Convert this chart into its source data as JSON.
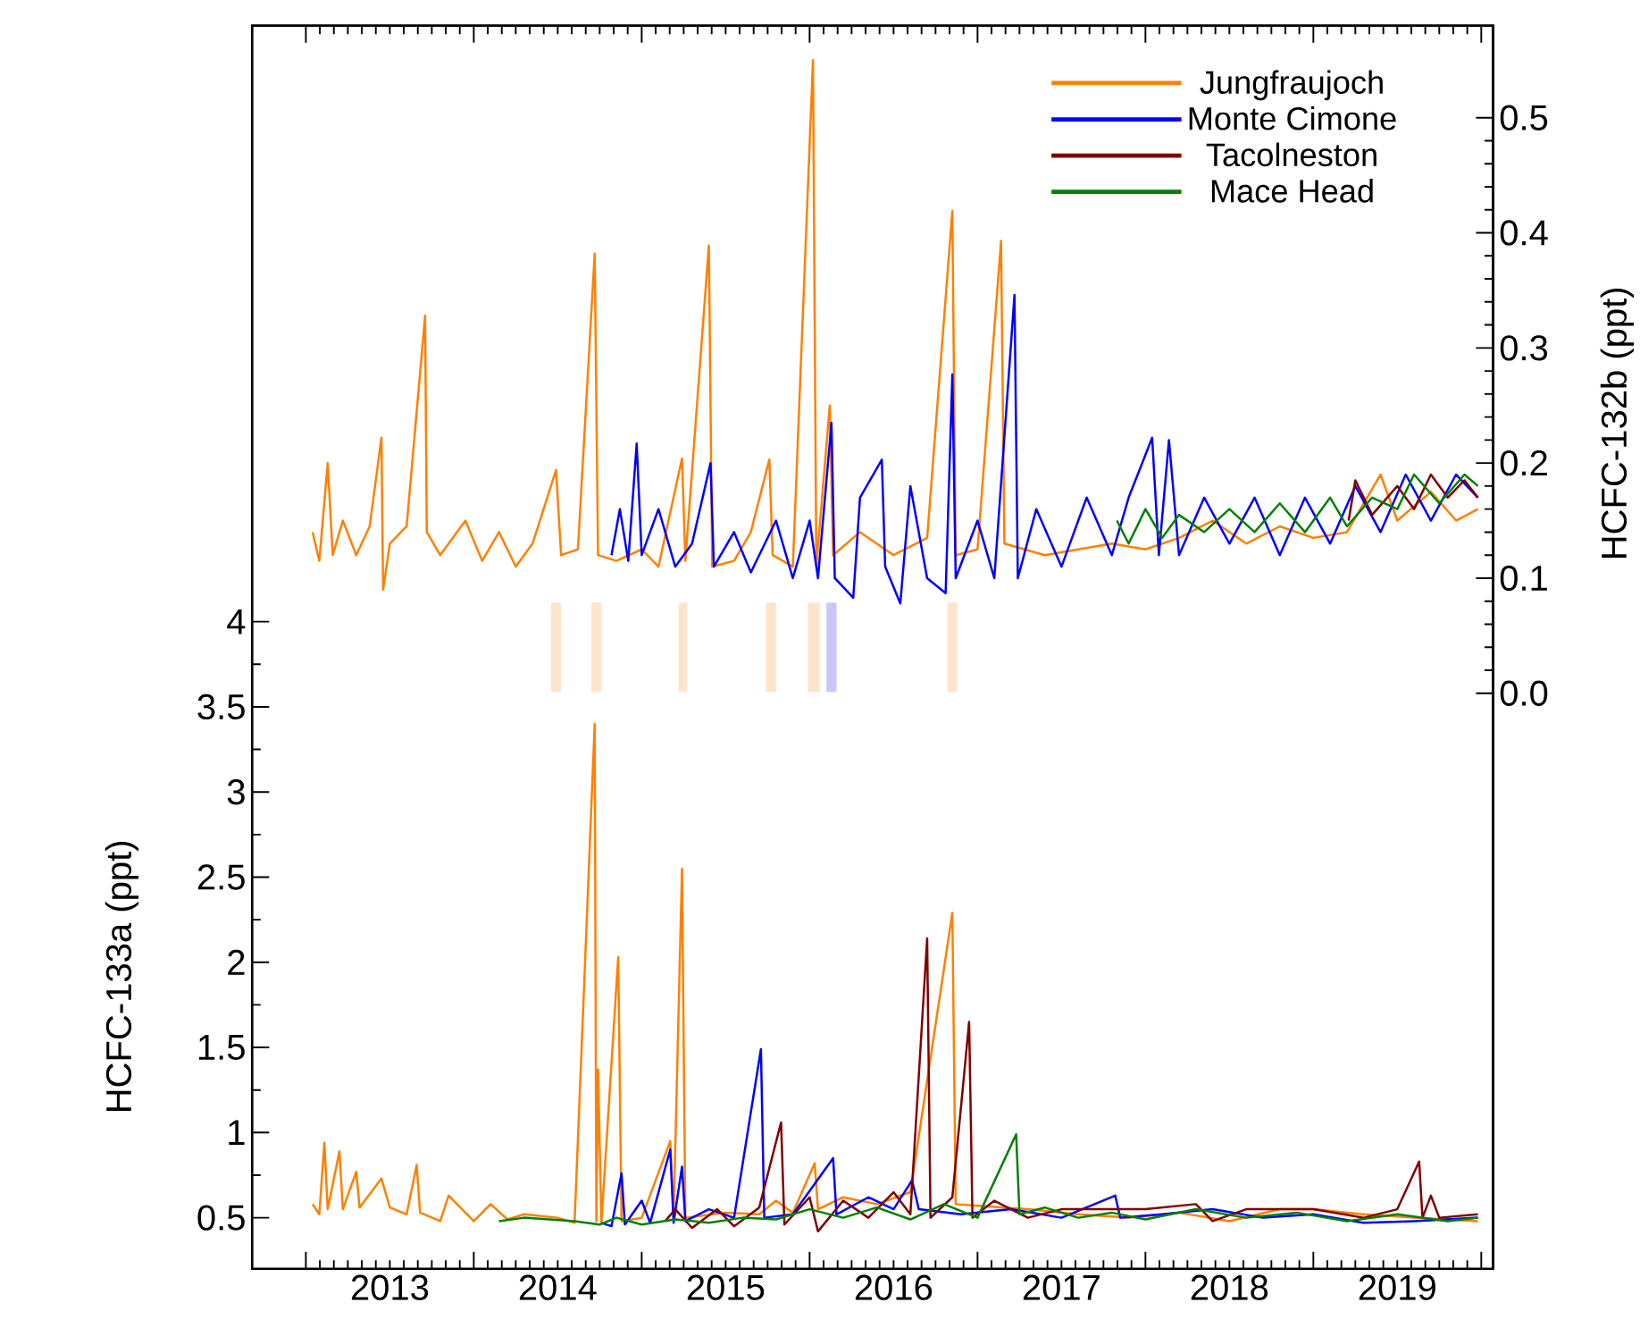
{
  "chart_data": {
    "type": "line",
    "ylabel": "HCFC-133a (ppt)",
    "y2label": "HCFC-132b (ppt)",
    "legend": "top right",
    "xlim": [
      2012.68,
      2020.07
    ],
    "ylim": [
      0.2,
      7.5
    ],
    "y2lim": [
      -0.5,
      0.58
    ],
    "xticks": [
      {
        "value": 2013,
        "label": null
      },
      {
        "value": 2014,
        "label": null
      },
      {
        "value": 2015,
        "label": null
      },
      {
        "value": 2016,
        "label": null
      },
      {
        "value": 2017,
        "label": null
      },
      {
        "value": 2018,
        "label": null
      },
      {
        "value": 2019,
        "label": null
      },
      {
        "value": 2020,
        "label": null
      },
      {
        "value": 2013.5,
        "label": "2013"
      },
      {
        "value": 2014.5,
        "label": "2014"
      },
      {
        "value": 2015.5,
        "label": "2015"
      },
      {
        "value": 2016.5,
        "label": "2016"
      },
      {
        "value": 2017.5,
        "label": "2017"
      },
      {
        "value": 2018.5,
        "label": "2018"
      },
      {
        "value": 2019.5,
        "label": "2019"
      }
    ],
    "yticks": [
      0.5,
      1,
      1.5,
      2,
      2.5,
      3,
      3.5,
      4
    ],
    "y2ticks": [
      {
        "value": 0,
        "label": "0.0"
      },
      {
        "value": 0.1,
        "label": "0.1"
      },
      {
        "value": 0.2,
        "label": "0.2"
      },
      {
        "value": 0.3,
        "label": "0.3"
      },
      {
        "value": 0.4,
        "label": "0.4"
      },
      {
        "value": 0.5,
        "label": "0.5"
      }
    ],
    "bands": [
      {
        "axis": "x",
        "from": 2014.46,
        "to": 2014.52,
        "color": "#ffe4cc"
      },
      {
        "axis": "x",
        "from": 2014.7,
        "to": 2014.76,
        "color": "#ffe4cc"
      },
      {
        "axis": "x",
        "from": 2015.22,
        "to": 2015.27,
        "color": "#ffe4cc"
      },
      {
        "axis": "x",
        "from": 2015.74,
        "to": 2015.8,
        "color": "#ffe4cc"
      },
      {
        "axis": "x",
        "from": 2015.99,
        "to": 2016.06,
        "color": "#ffe4cc"
      },
      {
        "axis": "x",
        "from": 2016.1,
        "to": 2016.16,
        "color": "#c8c8ff"
      },
      {
        "axis": "x",
        "from": 2016.82,
        "to": 2016.88,
        "color": "#ffe4cc"
      }
    ],
    "series": [
      {
        "name": "Jungfraujoch",
        "color": "#ff8000",
        "axis": "y2",
        "x": [
          2013.04,
          2013.08,
          2013.13,
          2013.16,
          2013.22,
          2013.3,
          2013.38,
          2013.45,
          2013.46,
          2013.5,
          2013.6,
          2013.71,
          2013.72,
          2013.8,
          2013.95,
          2014.05,
          2014.15,
          2014.25,
          2014.35,
          2014.49,
          2014.52,
          2014.62,
          2014.72,
          2014.74,
          2014.85,
          2015.0,
          2015.1,
          2015.24,
          2015.26,
          2015.4,
          2015.42,
          2015.55,
          2015.65,
          2015.76,
          2015.78,
          2015.9,
          2016.02,
          2016.04,
          2016.12,
          2016.14,
          2016.3,
          2016.5,
          2016.7,
          2016.85,
          2016.87,
          2017.0,
          2017.14,
          2017.16,
          2017.4,
          2017.6,
          2017.8,
          2018.0,
          2018.2,
          2018.4,
          2018.6,
          2018.8,
          2019.0,
          2019.2,
          2019.4,
          2019.5,
          2019.7,
          2019.85,
          2019.98
        ],
        "values": [
          0.14,
          0.115,
          0.2,
          0.12,
          0.15,
          0.12,
          0.145,
          0.222,
          0.09,
          0.13,
          0.145,
          0.328,
          0.14,
          0.12,
          0.15,
          0.115,
          0.14,
          0.11,
          0.13,
          0.194,
          0.12,
          0.125,
          0.382,
          0.12,
          0.115,
          0.125,
          0.11,
          0.204,
          0.115,
          0.389,
          0.11,
          0.115,
          0.14,
          0.203,
          0.12,
          0.11,
          0.55,
          0.11,
          0.25,
          0.12,
          0.14,
          0.12,
          0.135,
          0.419,
          0.12,
          0.125,
          0.393,
          0.13,
          0.12,
          0.125,
          0.13,
          0.125,
          0.135,
          0.15,
          0.13,
          0.145,
          0.135,
          0.14,
          0.19,
          0.15,
          0.175,
          0.15,
          0.16
        ]
      },
      {
        "name": "Monte Cimone",
        "color": "#0000ff",
        "axis": "y2",
        "x": [
          2014.82,
          2014.87,
          2014.92,
          2014.97,
          2015.0,
          2015.1,
          2015.2,
          2015.3,
          2015.41,
          2015.43,
          2015.55,
          2015.65,
          2015.8,
          2015.9,
          2016.0,
          2016.05,
          2016.13,
          2016.15,
          2016.26,
          2016.3,
          2016.43,
          2016.45,
          2016.54,
          2016.6,
          2016.7,
          2016.81,
          2016.85,
          2016.87,
          2017.0,
          2017.1,
          2017.22,
          2017.24,
          2017.35,
          2017.5,
          2017.65,
          2017.8,
          2017.9,
          2018.04,
          2018.08,
          2018.14,
          2018.2,
          2018.35,
          2018.5,
          2018.65,
          2018.8,
          2018.95,
          2019.1,
          2019.25,
          2019.4,
          2019.55,
          2019.7,
          2019.85,
          2019.98
        ],
        "values": [
          0.12,
          0.16,
          0.115,
          0.217,
          0.12,
          0.16,
          0.11,
          0.13,
          0.2,
          0.11,
          0.14,
          0.105,
          0.15,
          0.1,
          0.15,
          0.1,
          0.235,
          0.1,
          0.083,
          0.17,
          0.203,
          0.11,
          0.078,
          0.18,
          0.1,
          0.087,
          0.277,
          0.1,
          0.15,
          0.1,
          0.346,
          0.1,
          0.16,
          0.11,
          0.17,
          0.12,
          0.17,
          0.222,
          0.12,
          0.22,
          0.12,
          0.17,
          0.13,
          0.17,
          0.12,
          0.17,
          0.13,
          0.18,
          0.14,
          0.19,
          0.15,
          0.19,
          0.17
        ]
      },
      {
        "name": "Tacolneston",
        "color": "#800000",
        "axis": "y2",
        "x": [
          2019.21,
          2019.25,
          2019.35,
          2019.5,
          2019.6,
          2019.7,
          2019.8,
          2019.9,
          2019.98
        ],
        "values": [
          0.15,
          0.185,
          0.155,
          0.18,
          0.16,
          0.19,
          0.17,
          0.185,
          0.17
        ]
      },
      {
        "name": "Mace Head",
        "color": "#008000",
        "axis": "y2",
        "x": [
          2017.83,
          2017.9,
          2018.0,
          2018.1,
          2018.2,
          2018.35,
          2018.5,
          2018.65,
          2018.8,
          2018.95,
          2019.1,
          2019.2,
          2019.35,
          2019.5,
          2019.6,
          2019.75,
          2019.9,
          2019.98
        ],
        "values": [
          0.15,
          0.13,
          0.16,
          0.135,
          0.155,
          0.14,
          0.16,
          0.14,
          0.165,
          0.14,
          0.17,
          0.145,
          0.17,
          0.16,
          0.19,
          0.165,
          0.19,
          0.18
        ]
      },
      {
        "color": "#ff8000",
        "x": [
          2013.04,
          2013.08,
          2013.11,
          2013.13,
          2013.2,
          2013.22,
          2013.3,
          2013.32,
          2013.45,
          2013.5,
          2013.6,
          2013.66,
          2013.68,
          2013.8,
          2013.85,
          2014.0,
          2014.1,
          2014.2,
          2014.3,
          2014.5,
          2014.6,
          2014.72,
          2014.73,
          2014.74,
          2014.76,
          2014.86,
          2014.88,
          2015.0,
          2015.17,
          2015.19,
          2015.24,
          2015.26,
          2015.5,
          2015.7,
          2015.8,
          2015.9,
          2016.03,
          2016.05,
          2016.2,
          2016.4,
          2016.6,
          2016.85,
          2016.87,
          2017.0,
          2017.3,
          2017.6,
          2017.9,
          2018.2,
          2018.5,
          2018.8,
          2019.0,
          2019.3,
          2019.6,
          2019.98
        ],
        "values": [
          0.58,
          0.52,
          0.94,
          0.55,
          0.89,
          0.55,
          0.77,
          0.56,
          0.73,
          0.56,
          0.52,
          0.81,
          0.53,
          0.48,
          0.63,
          0.48,
          0.58,
          0.49,
          0.52,
          0.5,
          0.47,
          3.4,
          0.48,
          1.37,
          0.47,
          2.03,
          0.48,
          0.5,
          0.95,
          0.5,
          2.55,
          0.5,
          0.53,
          0.52,
          0.6,
          0.53,
          0.82,
          0.55,
          0.62,
          0.58,
          0.65,
          2.29,
          0.58,
          0.57,
          0.55,
          0.52,
          0.5,
          0.53,
          0.48,
          0.55,
          0.55,
          0.52,
          0.5,
          0.48
        ]
      },
      {
        "color": "#0000ff",
        "x": [
          2014.76,
          2014.82,
          2014.88,
          2014.9,
          2015.0,
          2015.05,
          2015.17,
          2015.19,
          2015.24,
          2015.26,
          2015.4,
          2015.55,
          2015.71,
          2015.73,
          2015.9,
          2016.14,
          2016.16,
          2016.35,
          2016.5,
          2016.61,
          2016.65,
          2016.9,
          2017.2,
          2017.5,
          2017.82,
          2017.85,
          2018.1,
          2018.4,
          2018.7,
          2019.0,
          2019.3,
          2019.6,
          2019.98
        ],
        "values": [
          0.47,
          0.45,
          0.76,
          0.46,
          0.6,
          0.47,
          0.9,
          0.47,
          0.8,
          0.48,
          0.55,
          0.5,
          1.49,
          0.5,
          0.52,
          0.85,
          0.52,
          0.62,
          0.55,
          0.72,
          0.55,
          0.52,
          0.55,
          0.5,
          0.63,
          0.5,
          0.52,
          0.55,
          0.5,
          0.52,
          0.47,
          0.48,
          0.5
        ]
      },
      {
        "color": "#800000",
        "x": [
          2015.14,
          2015.2,
          2015.3,
          2015.45,
          2015.55,
          2015.7,
          2015.83,
          2015.85,
          2016.0,
          2016.05,
          2016.2,
          2016.35,
          2016.5,
          2016.6,
          2016.7,
          2016.72,
          2016.85,
          2016.95,
          2016.97,
          2017.1,
          2017.3,
          2017.5,
          2018.0,
          2018.3,
          2018.4,
          2018.6,
          2019.0,
          2019.3,
          2019.5,
          2019.63,
          2019.65,
          2019.7,
          2019.75,
          2019.98
        ],
        "values": [
          0.48,
          0.55,
          0.44,
          0.55,
          0.45,
          0.56,
          1.06,
          0.46,
          0.62,
          0.42,
          0.6,
          0.5,
          0.65,
          0.52,
          2.14,
          0.5,
          0.62,
          1.65,
          0.5,
          0.6,
          0.5,
          0.55,
          0.55,
          0.58,
          0.48,
          0.55,
          0.55,
          0.5,
          0.55,
          0.83,
          0.5,
          0.63,
          0.5,
          0.52
        ]
      },
      {
        "color": "#008000",
        "x": [
          2014.15,
          2014.3,
          2014.45,
          2014.6,
          2014.75,
          2014.85,
          2015.0,
          2015.2,
          2015.4,
          2015.6,
          2015.8,
          2016.0,
          2016.2,
          2016.4,
          2016.6,
          2016.8,
          2017.0,
          2017.23,
          2017.25,
          2017.4,
          2017.6,
          2017.8,
          2018.0,
          2018.3,
          2018.6,
          2018.9,
          2019.2,
          2019.5,
          2019.8,
          2019.98
        ],
        "values": [
          0.48,
          0.5,
          0.49,
          0.48,
          0.46,
          0.5,
          0.46,
          0.49,
          0.47,
          0.5,
          0.49,
          0.55,
          0.5,
          0.56,
          0.49,
          0.58,
          0.5,
          0.99,
          0.52,
          0.56,
          0.5,
          0.53,
          0.49,
          0.55,
          0.5,
          0.53,
          0.48,
          0.52,
          0.48,
          0.5
        ]
      }
    ]
  }
}
